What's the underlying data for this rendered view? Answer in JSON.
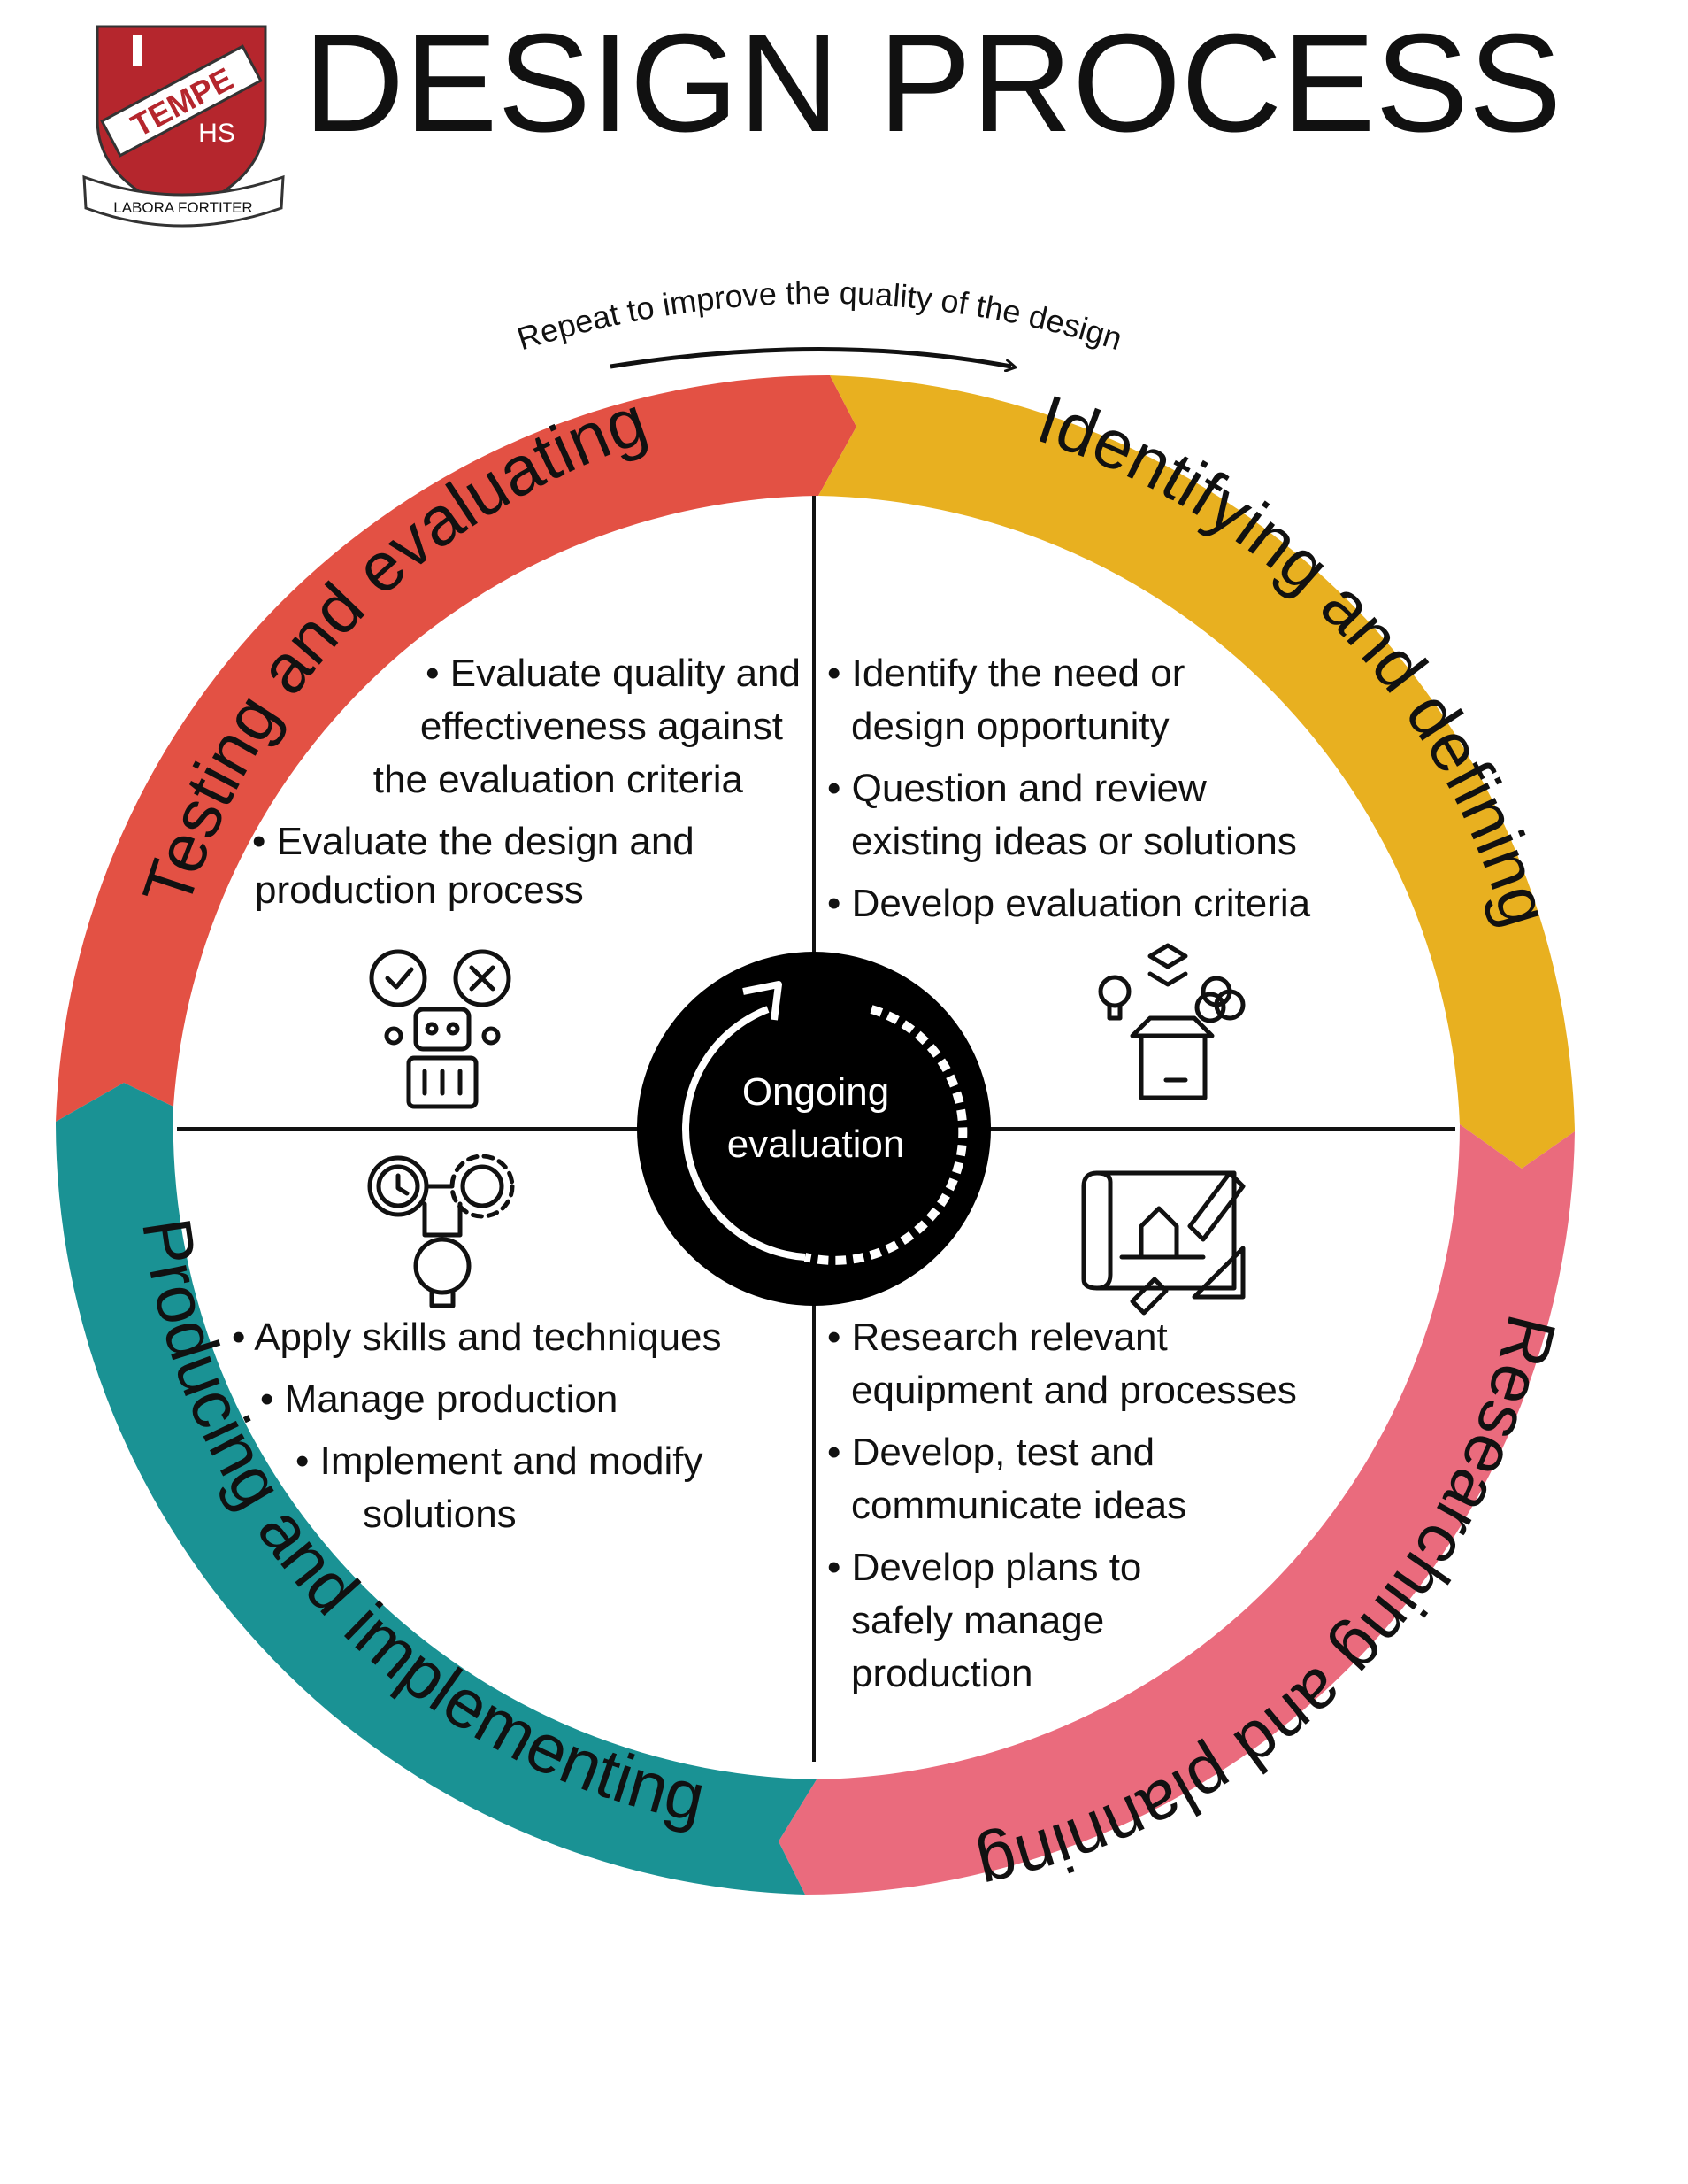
{
  "header": {
    "title": "DESIGN PROCESS",
    "logo": {
      "top_text": "TEMPE",
      "sub_text": "HS",
      "motto": "LABORA FORTITER",
      "color": "#b5262d"
    }
  },
  "cycle_note": "Repeat to improve the quality of the design",
  "center_label": [
    "Ongoing",
    "evaluation"
  ],
  "stages": [
    {
      "name": "Identifying and defining",
      "color": "#e8b020",
      "icon": "lightbulb-box-icon",
      "bullets": [
        [
          "Identify the need or",
          "design opportunity"
        ],
        [
          "Question and review",
          "existing ideas or solutions"
        ],
        [
          "Develop evaluation criteria"
        ]
      ]
    },
    {
      "name": "Researching and planning",
      "color": "#ea6b7d",
      "icon": "blueprint-pencil-icon",
      "bullets": [
        [
          "Research relevant",
          "equipment and processes"
        ],
        [
          "Develop, test and",
          "communicate ideas"
        ],
        [
          "Develop plans to",
          "safely manage",
          "production"
        ]
      ]
    },
    {
      "name": "Producing and implementing",
      "color": "#1a9294",
      "icon": "clock-gear-bulb-icon",
      "bullets": [
        [
          "Apply skills and techniques"
        ],
        [
          "Manage production"
        ],
        [
          "Implement and modify",
          "solutions"
        ]
      ]
    },
    {
      "name": "Testing and evaluating",
      "color": "#e35144",
      "icon": "robot-evaluation-icon",
      "bullets": [
        [
          "Evaluate quality and",
          "effectiveness against",
          "the evaluation criteria"
        ],
        [
          "Evaluate the design and",
          "production process"
        ]
      ]
    }
  ]
}
